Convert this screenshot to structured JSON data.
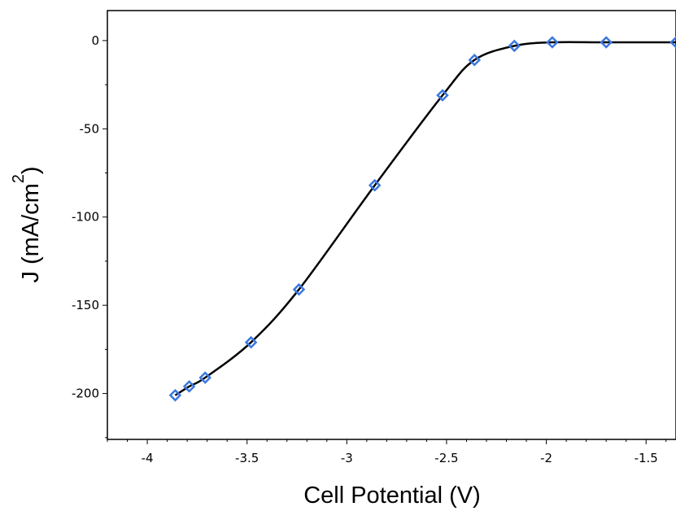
{
  "chart_data": {
    "type": "line",
    "title": "",
    "xlabel": "Cell Potential (V)",
    "ylabel": {
      "main": "J (mA/cm",
      "superscript": "2",
      "close": ")"
    },
    "xlim": [
      -4.2,
      -1.35
    ],
    "ylim": [
      -226,
      17
    ],
    "x_ticks": [
      -4,
      -3.5,
      -3,
      -2.5,
      -2,
      -1.5
    ],
    "x_tick_labels": [
      "-4",
      "-3.5",
      "-3",
      "-2.5",
      "-2",
      "-1.5"
    ],
    "y_ticks": [
      0,
      -50,
      -100,
      -150,
      -200
    ],
    "y_tick_labels": [
      "0",
      "-50",
      "-100",
      "-150",
      "-200"
    ],
    "grid": false,
    "series": [
      {
        "line_color": "#000000",
        "marker": "diamond",
        "marker_color": "#3a78e0",
        "x": [
          -3.86,
          -3.79,
          -3.71,
          -3.48,
          -3.24,
          -2.86,
          -2.52,
          -2.36,
          -2.16,
          -1.97,
          -1.7,
          -1.35
        ],
        "y": [
          -201,
          -196,
          -191,
          -171,
          -141,
          -82,
          -31,
          -11,
          -3,
          -1,
          -1,
          -1
        ]
      }
    ]
  }
}
